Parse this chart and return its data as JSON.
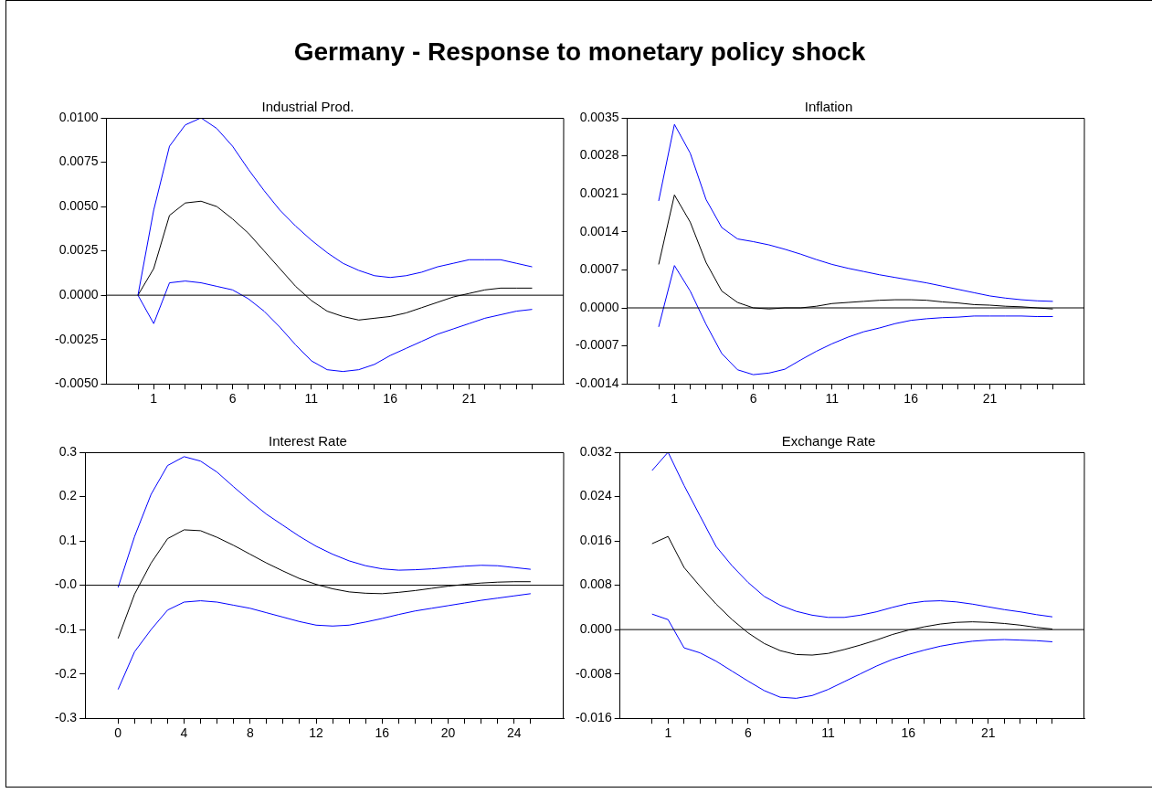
{
  "chart_data": [
    {
      "type": "line",
      "title": "Industrial Prod.",
      "annotations": [
        "Germany - Response to monetary policy shock"
      ],
      "marker": "none",
      "line_style": "solid",
      "x": [
        0,
        1,
        2,
        3,
        4,
        5,
        6,
        7,
        8,
        9,
        10,
        11,
        12,
        13,
        14,
        15,
        16,
        17,
        18,
        19,
        20,
        21,
        22,
        23,
        24,
        25
      ],
      "xlim": [
        -2,
        27
      ],
      "xticks": [
        {
          "value": 0,
          "label": null
        },
        {
          "value": 1,
          "label": "1"
        },
        {
          "value": 2,
          "label": null
        },
        {
          "value": 3,
          "label": null
        },
        {
          "value": 4,
          "label": null
        },
        {
          "value": 5,
          "label": null
        },
        {
          "value": 6,
          "label": "6"
        },
        {
          "value": 7,
          "label": null
        },
        {
          "value": 8,
          "label": null
        },
        {
          "value": 9,
          "label": null
        },
        {
          "value": 10,
          "label": null
        },
        {
          "value": 11,
          "label": "11"
        },
        {
          "value": 12,
          "label": null
        },
        {
          "value": 13,
          "label": null
        },
        {
          "value": 14,
          "label": null
        },
        {
          "value": 15,
          "label": null
        },
        {
          "value": 16,
          "label": "16"
        },
        {
          "value": 17,
          "label": null
        },
        {
          "value": 18,
          "label": null
        },
        {
          "value": 19,
          "label": null
        },
        {
          "value": 20,
          "label": null
        },
        {
          "value": 21,
          "label": "21"
        },
        {
          "value": 22,
          "label": null
        },
        {
          "value": 23,
          "label": null
        },
        {
          "value": 24,
          "label": null
        },
        {
          "value": 25,
          "label": null
        }
      ],
      "ylim": [
        -0.005,
        0.01
      ],
      "yticks": [
        {
          "value": -0.005,
          "label": "-0.0050"
        },
        {
          "value": -0.0025,
          "label": "-0.0025"
        },
        {
          "value": 0,
          "label": "0.0000"
        },
        {
          "value": 0.0025,
          "label": "0.0025"
        },
        {
          "value": 0.005,
          "label": "0.0050"
        },
        {
          "value": 0.0075,
          "label": "0.0075"
        },
        {
          "value": 0.01,
          "label": "0.0100"
        }
      ],
      "ref_lines": [
        {
          "axis": "y",
          "value": 0,
          "color": "#000000"
        }
      ],
      "series": [
        {
          "color": "#0000ff",
          "values": [
            0,
            0.0048,
            0.0084,
            0.0096,
            0.01,
            0.0094,
            0.0084,
            0.0071,
            0.0059,
            0.0048,
            0.0039,
            0.0031,
            0.0024,
            0.0018,
            0.0014,
            0.0011,
            0.001,
            0.0011,
            0.0013,
            0.0016,
            0.0018,
            0.002,
            0.002,
            0.002,
            0.0018,
            0.0016
          ]
        },
        {
          "color": "#000000",
          "values": [
            0,
            0.0015,
            0.0045,
            0.0052,
            0.0053,
            0.005,
            0.0043,
            0.0035,
            0.0025,
            0.0015,
            0.0005,
            -0.0003,
            -0.0009,
            -0.0012,
            -0.0014,
            -0.0013,
            -0.0012,
            -0.001,
            -0.0007,
            -0.0004,
            -0.0001,
            0.0001,
            0.0003,
            0.0004,
            0.0004,
            0.0004
          ]
        },
        {
          "color": "#0000ff",
          "values": [
            0,
            -0.0016,
            0.0007,
            0.0008,
            0.0007,
            0.0005,
            0.0003,
            -0.0002,
            -0.0009,
            -0.0018,
            -0.0028,
            -0.0037,
            -0.0042,
            -0.0043,
            -0.0042,
            -0.0039,
            -0.0034,
            -0.003,
            -0.0026,
            -0.0022,
            -0.0019,
            -0.0016,
            -0.0013,
            -0.0011,
            -0.0009,
            -0.0008
          ]
        }
      ]
    },
    {
      "type": "line",
      "title": "Inflation",
      "marker": "none",
      "line_style": "solid",
      "x": [
        0,
        1,
        2,
        3,
        4,
        5,
        6,
        7,
        8,
        9,
        10,
        11,
        12,
        13,
        14,
        15,
        16,
        17,
        18,
        19,
        20,
        21,
        22,
        23,
        24,
        25
      ],
      "xlim": [
        -2,
        27
      ],
      "xticks": [
        {
          "value": 0,
          "label": null
        },
        {
          "value": 1,
          "label": "1"
        },
        {
          "value": 2,
          "label": null
        },
        {
          "value": 3,
          "label": null
        },
        {
          "value": 4,
          "label": null
        },
        {
          "value": 5,
          "label": null
        },
        {
          "value": 6,
          "label": "6"
        },
        {
          "value": 7,
          "label": null
        },
        {
          "value": 8,
          "label": null
        },
        {
          "value": 9,
          "label": null
        },
        {
          "value": 10,
          "label": null
        },
        {
          "value": 11,
          "label": "11"
        },
        {
          "value": 12,
          "label": null
        },
        {
          "value": 13,
          "label": null
        },
        {
          "value": 14,
          "label": null
        },
        {
          "value": 15,
          "label": null
        },
        {
          "value": 16,
          "label": "16"
        },
        {
          "value": 17,
          "label": null
        },
        {
          "value": 18,
          "label": null
        },
        {
          "value": 19,
          "label": null
        },
        {
          "value": 20,
          "label": null
        },
        {
          "value": 21,
          "label": "21"
        },
        {
          "value": 22,
          "label": null
        },
        {
          "value": 23,
          "label": null
        },
        {
          "value": 24,
          "label": null
        },
        {
          "value": 25,
          "label": null
        }
      ],
      "ylim": [
        -0.0014,
        0.0035
      ],
      "yticks": [
        {
          "value": -0.0014,
          "label": "-0.0014"
        },
        {
          "value": -0.0007,
          "label": "-0.0007"
        },
        {
          "value": 0,
          "label": "0.0000"
        },
        {
          "value": 0.0007,
          "label": "0.0007"
        },
        {
          "value": 0.0014,
          "label": "0.0014"
        },
        {
          "value": 0.0021,
          "label": "0.0021"
        },
        {
          "value": 0.0028,
          "label": "0.0028"
        },
        {
          "value": 0.0035,
          "label": "0.0035"
        }
      ],
      "ref_lines": [
        {
          "axis": "y",
          "value": 0,
          "color": "#000000"
        }
      ],
      "series": [
        {
          "color": "#0000ff",
          "values": [
            0.00197,
            0.00338,
            0.00285,
            0.002,
            0.00148,
            0.00127,
            0.00122,
            0.00116,
            0.00108,
            0.00099,
            0.00089,
            0.0008,
            0.00073,
            0.00067,
            0.00061,
            0.00056,
            0.00051,
            0.00046,
            0.0004,
            0.00034,
            0.00028,
            0.00022,
            0.00018,
            0.00015,
            0.00013,
            0.00012
          ]
        },
        {
          "color": "#000000",
          "values": [
            0.0008,
            0.00208,
            0.00158,
            0.00084,
            0.00031,
            0.0001,
            0,
            -2e-05,
            0,
            0,
            3e-05,
            8e-05,
            0.0001,
            0.00012,
            0.00014,
            0.00015,
            0.00015,
            0.00014,
            0.00011,
            9e-05,
            6e-05,
            5e-05,
            3e-05,
            2e-05,
            0,
            -2e-05
          ]
        },
        {
          "color": "#0000ff",
          "values": [
            -0.00035,
            0.00078,
            0.00031,
            -0.0003,
            -0.00084,
            -0.00114,
            -0.00123,
            -0.0012,
            -0.00113,
            -0.00096,
            -0.0008,
            -0.00066,
            -0.00054,
            -0.00044,
            -0.00037,
            -0.00029,
            -0.00023,
            -0.0002,
            -0.00018,
            -0.00017,
            -0.00015,
            -0.00015,
            -0.00015,
            -0.00015,
            -0.00016,
            -0.00016
          ]
        }
      ]
    },
    {
      "type": "line",
      "title": "Interest Rate",
      "marker": "none",
      "line_style": "solid",
      "x": [
        0,
        1,
        2,
        3,
        4,
        5,
        6,
        7,
        8,
        9,
        10,
        11,
        12,
        13,
        14,
        15,
        16,
        17,
        18,
        19,
        20,
        21,
        22,
        23,
        24,
        25
      ],
      "xlim": [
        -2,
        27
      ],
      "xticks": [
        0,
        {
          "value": 1,
          "label": null
        },
        {
          "value": 2,
          "label": null
        },
        {
          "value": 3,
          "label": null
        },
        4,
        {
          "value": 5,
          "label": null
        },
        {
          "value": 6,
          "label": null
        },
        {
          "value": 7,
          "label": null
        },
        8,
        {
          "value": 9,
          "label": null
        },
        {
          "value": 10,
          "label": null
        },
        {
          "value": 11,
          "label": null
        },
        12,
        {
          "value": 13,
          "label": null
        },
        {
          "value": 14,
          "label": null
        },
        {
          "value": 15,
          "label": null
        },
        16,
        {
          "value": 17,
          "label": null
        },
        {
          "value": 18,
          "label": null
        },
        {
          "value": 19,
          "label": null
        },
        20,
        {
          "value": 21,
          "label": null
        },
        {
          "value": 22,
          "label": null
        },
        {
          "value": 23,
          "label": null
        },
        24,
        {
          "value": 25,
          "label": null
        }
      ],
      "ylim": [
        -0.3,
        0.3
      ],
      "yticks": [
        -0.3,
        -0.2,
        -0.1,
        {
          "value": 0,
          "label": "-0.0"
        },
        0.1,
        0.2,
        0.3
      ],
      "ref_lines": [
        {
          "axis": "y",
          "value": 0,
          "color": "#000000"
        }
      ],
      "series": [
        {
          "color": "#0000ff",
          "values": [
            -0.005,
            0.11,
            0.205,
            0.27,
            0.29,
            0.28,
            0.255,
            0.222,
            0.19,
            0.16,
            0.135,
            0.11,
            0.088,
            0.07,
            0.055,
            0.044,
            0.037,
            0.034,
            0.035,
            0.037,
            0.04,
            0.043,
            0.045,
            0.044,
            0.04,
            0.036
          ]
        },
        {
          "color": "#000000",
          "values": [
            -0.12,
            -0.02,
            0.05,
            0.105,
            0.125,
            0.123,
            0.108,
            0.09,
            0.07,
            0.05,
            0.032,
            0.015,
            0.002,
            -0.008,
            -0.015,
            -0.018,
            -0.019,
            -0.016,
            -0.012,
            -0.007,
            -0.002,
            0.002,
            0.005,
            0.007,
            0.008,
            0.008
          ]
        },
        {
          "color": "#0000ff",
          "values": [
            -0.235,
            -0.15,
            -0.1,
            -0.056,
            -0.038,
            -0.035,
            -0.038,
            -0.045,
            -0.052,
            -0.062,
            -0.072,
            -0.082,
            -0.09,
            -0.092,
            -0.09,
            -0.083,
            -0.075,
            -0.066,
            -0.058,
            -0.052,
            -0.046,
            -0.04,
            -0.034,
            -0.029,
            -0.024,
            -0.019
          ]
        }
      ]
    },
    {
      "type": "line",
      "title": "Exchange Rate",
      "marker": "none",
      "line_style": "solid",
      "x": [
        0,
        1,
        2,
        3,
        4,
        5,
        6,
        7,
        8,
        9,
        10,
        11,
        12,
        13,
        14,
        15,
        16,
        17,
        18,
        19,
        20,
        21,
        22,
        23,
        24,
        25
      ],
      "xlim": [
        -2,
        27
      ],
      "xticks": [
        {
          "value": 0,
          "label": null
        },
        {
          "value": 1,
          "label": "1"
        },
        {
          "value": 2,
          "label": null
        },
        {
          "value": 3,
          "label": null
        },
        {
          "value": 4,
          "label": null
        },
        {
          "value": 5,
          "label": null
        },
        {
          "value": 6,
          "label": "6"
        },
        {
          "value": 7,
          "label": null
        },
        {
          "value": 8,
          "label": null
        },
        {
          "value": 9,
          "label": null
        },
        {
          "value": 10,
          "label": null
        },
        {
          "value": 11,
          "label": "11"
        },
        {
          "value": 12,
          "label": null
        },
        {
          "value": 13,
          "label": null
        },
        {
          "value": 14,
          "label": null
        },
        {
          "value": 15,
          "label": null
        },
        {
          "value": 16,
          "label": "16"
        },
        {
          "value": 17,
          "label": null
        },
        {
          "value": 18,
          "label": null
        },
        {
          "value": 19,
          "label": null
        },
        {
          "value": 20,
          "label": null
        },
        {
          "value": 21,
          "label": "21"
        },
        {
          "value": 22,
          "label": null
        },
        {
          "value": 23,
          "label": null
        },
        {
          "value": 24,
          "label": null
        },
        {
          "value": 25,
          "label": null
        }
      ],
      "ylim": [
        -0.016,
        0.032
      ],
      "yticks": [
        -0.016,
        -0.008,
        {
          "value": 0,
          "label": "0.000"
        },
        0.008,
        0.016,
        0.024,
        0.032
      ],
      "ref_lines": [
        {
          "axis": "y",
          "value": 0,
          "color": "#000000"
        }
      ],
      "series": [
        {
          "color": "#0000ff",
          "values": [
            0.0287,
            0.032,
            0.026,
            0.0205,
            0.015,
            0.0115,
            0.0085,
            0.006,
            0.0044,
            0.0033,
            0.0026,
            0.0022,
            0.0022,
            0.0026,
            0.0032,
            0.004,
            0.0047,
            0.0051,
            0.0052,
            0.005,
            0.0046,
            0.0041,
            0.0036,
            0.0032,
            0.0027,
            0.0023
          ]
        },
        {
          "color": "#000000",
          "values": [
            0.0155,
            0.0168,
            0.0112,
            0.0078,
            0.0046,
            0.0018,
            -0.0006,
            -0.0025,
            -0.0038,
            -0.0045,
            -0.0046,
            -0.0043,
            -0.0036,
            -0.0028,
            -0.0019,
            -0.0009,
            -0.0001,
            0.0005,
            0.001,
            0.0013,
            0.0014,
            0.0013,
            0.0011,
            0.0008,
            0.0004,
            0.0001
          ]
        },
        {
          "color": "#0000ff",
          "values": [
            0.0028,
            0.0018,
            -0.0033,
            -0.0042,
            -0.0057,
            -0.0075,
            -0.0093,
            -0.011,
            -0.0122,
            -0.0124,
            -0.0119,
            -0.0108,
            -0.0094,
            -0.008,
            -0.0066,
            -0.0054,
            -0.0045,
            -0.0037,
            -0.003,
            -0.0025,
            -0.0021,
            -0.0019,
            -0.0018,
            -0.0019,
            -0.002,
            -0.0022
          ]
        }
      ]
    }
  ]
}
